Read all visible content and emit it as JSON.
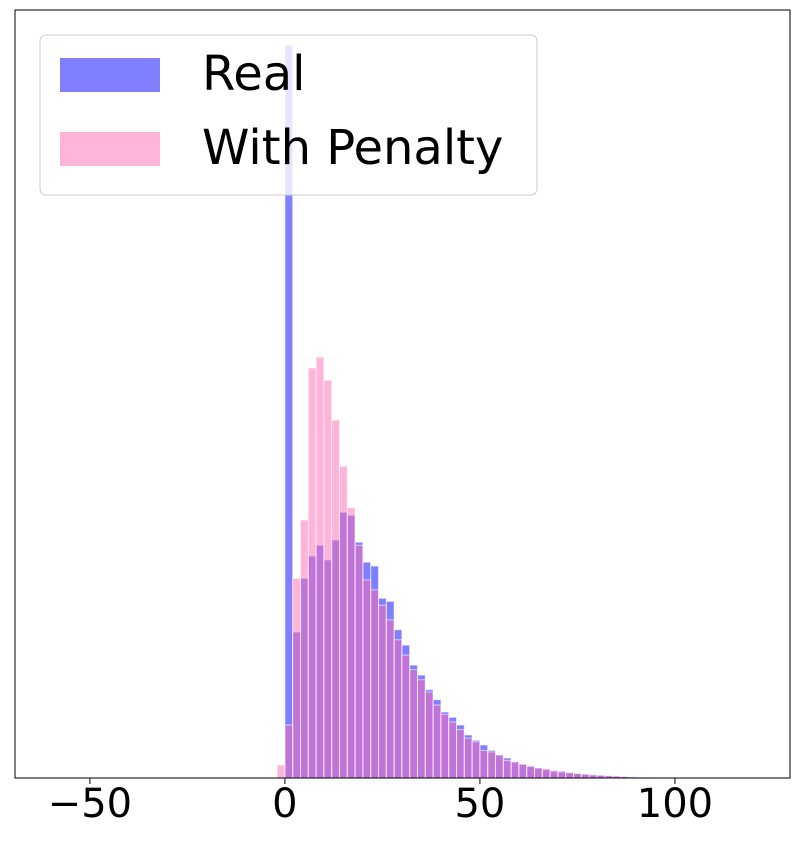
{
  "chart_data": {
    "type": "histogram",
    "bins": [
      -2,
      0,
      2,
      4,
      6,
      8,
      10,
      12,
      14,
      16,
      18,
      20,
      22,
      24,
      26,
      28,
      30,
      32,
      34,
      36,
      38,
      40,
      42,
      44,
      46,
      48,
      50,
      52,
      54,
      56,
      58,
      60,
      62,
      64,
      66,
      68,
      70,
      72,
      74,
      76,
      78,
      80,
      82,
      84,
      86,
      88,
      90,
      92,
      94,
      96,
      98,
      100,
      102,
      104,
      106,
      108,
      110,
      112,
      114,
      116
    ],
    "series": [
      {
        "name": "Real",
        "color": "#0000ff",
        "values": [
          0,
          95.4,
          19,
          26,
          28.9,
          30.3,
          28.4,
          31,
          34.6,
          34.2,
          30.7,
          28.1,
          27.6,
          23.4,
          23,
          19.3,
          17.3,
          14.7,
          13.4,
          11.5,
          10.2,
          8.6,
          7.9,
          6.9,
          5.6,
          4.9,
          4.3,
          3.6,
          3.0,
          2.6,
          2.1,
          1.8,
          1.6,
          1.3,
          1.1,
          1.0,
          0.9,
          0.7,
          0.6,
          0.5,
          0.45,
          0.4,
          0.3,
          0.25,
          0.2,
          0.18,
          0.15,
          0.12,
          0.1,
          0.08,
          0.07,
          0.05,
          0.04,
          0.03,
          0.02,
          0.02,
          0.01,
          0.01,
          0.01
        ]
      },
      {
        "name": "With Penalty",
        "color": "#ff69b4",
        "values": [
          1.7,
          6.9,
          26,
          33.6,
          53.4,
          54.8,
          51.8,
          46.6,
          40.6,
          35.2,
          30.3,
          25.8,
          24.5,
          22.5,
          20.6,
          18,
          16,
          14.1,
          12.8,
          11.2,
          9.5,
          8.3,
          7.3,
          6.3,
          5.2,
          4.7,
          3.6,
          3.4,
          3.0,
          2.3,
          2.1,
          1.8,
          1.5,
          1.3,
          1.2,
          0.9,
          0.8,
          0.7,
          0.6,
          0.5,
          0.4,
          0.35,
          0.3,
          0.25,
          0.2,
          0.15,
          0.12,
          0.1,
          0.1,
          0.08,
          0.06,
          0.05,
          0.03,
          0.02,
          0.02,
          0.01,
          0.01,
          0,
          0
        ]
      }
    ],
    "xlim": [
      -69.2,
      129.5
    ],
    "xticks": [
      {
        "value": -50,
        "label": "−50"
      },
      0,
      50,
      100
    ],
    "ylim": [
      0,
      100
    ],
    "legend": "upper left"
  }
}
